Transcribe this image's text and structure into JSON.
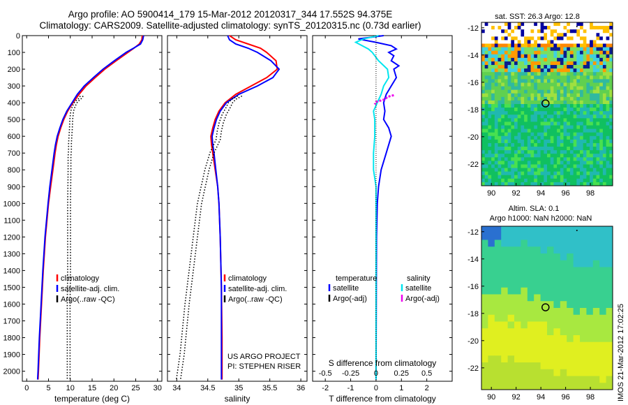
{
  "header": {
    "title_line1": "Argo profile: AO 5900414_179 15-Mar-2012 20120317_344 17.552S 94.375E",
    "title_line2": "Climatology: CARS2009. Satellite-adjusted climatology: synTS_20120315.nc (0.73d earlier)"
  },
  "stamp": "IMOS 21-Mar-2012 17:02:25",
  "chart_data": [
    {
      "type": "line",
      "panel": "temperature",
      "xlabel": "temperature (deg C)",
      "ylabel": "",
      "xlim": [
        -1,
        31
      ],
      "ylim": [
        2060,
        0
      ],
      "xticks": [
        0,
        5,
        10,
        15,
        20,
        25,
        30
      ],
      "yticks": [
        0,
        100,
        200,
        300,
        400,
        500,
        600,
        700,
        800,
        900,
        1000,
        1100,
        1200,
        1300,
        1400,
        1500,
        1600,
        1700,
        1800,
        1900,
        2000
      ],
      "legend": [
        "climatology",
        "satellite-adj. clim.",
        "Argo(..raw -QC)"
      ],
      "legend_placement": "lower-right",
      "series": [
        {
          "name": "climatology",
          "color": "#ff0000",
          "depth": [
            0,
            25,
            50,
            75,
            100,
            150,
            200,
            250,
            300,
            350,
            400,
            450,
            500,
            550,
            600,
            650,
            700,
            800,
            900,
            1000,
            1200,
            1400,
            1600,
            1800,
            2000,
            2050
          ],
          "values": [
            26.5,
            26.4,
            25.8,
            24.6,
            23.2,
            20.5,
            17.9,
            15.7,
            13.6,
            12.0,
            10.6,
            9.4,
            8.5,
            7.8,
            7.2,
            6.8,
            6.5,
            6.0,
            5.5,
            5.0,
            4.3,
            3.8,
            3.4,
            3.0,
            2.7,
            2.6
          ]
        },
        {
          "name": "satellite-adj. clim.",
          "color": "#0000ff",
          "depth": [
            0,
            25,
            50,
            75,
            100,
            150,
            200,
            250,
            300,
            350,
            400,
            450,
            500,
            550,
            600,
            650,
            700,
            800,
            900,
            1000,
            1200,
            1400,
            1600,
            1800,
            2000,
            2050
          ],
          "values": [
            26.8,
            26.6,
            26.1,
            24.5,
            22.8,
            20.1,
            17.5,
            15.3,
            13.2,
            11.6,
            10.4,
            9.2,
            8.3,
            7.6,
            7.0,
            6.6,
            6.3,
            5.8,
            5.3,
            4.9,
            4.2,
            3.7,
            3.3,
            2.9,
            2.6,
            2.5
          ]
        },
        {
          "name": "Argo(..raw -QC)",
          "color": "#000000",
          "depth": [
            360,
            375,
            390,
            400,
            420,
            450,
            500,
            560,
            600,
            640,
            680,
            720,
            760,
            800,
            1000,
            1200,
            1400,
            1600,
            1800,
            1950,
            2050
          ],
          "values": [
            12.3,
            11.9,
            11.2,
            10.9,
            10.5,
            10.1,
            9.9,
            9.8,
            9.7,
            9.6,
            9.6,
            9.5,
            9.5,
            9.5,
            9.4,
            9.4,
            9.4,
            9.3,
            9.3,
            9.3,
            9.3
          ]
        }
      ]
    },
    {
      "type": "line",
      "panel": "salinity",
      "xlabel": "salinity",
      "ylabel": "",
      "xlim": [
        33.85,
        36.1
      ],
      "ylim": [
        2060,
        0
      ],
      "xticks": [
        34,
        34.5,
        35,
        35.5,
        36
      ],
      "legend": [
        "climatology",
        "satellite-adj. clim.",
        "Argo(..raw -QC)"
      ],
      "legend_placement": "lower-right",
      "annotations": [
        "US ARGO PROJECT",
        "PI: STEPHEN RISER"
      ],
      "series": [
        {
          "name": "climatology",
          "color": "#ff0000",
          "depth": [
            0,
            25,
            50,
            75,
            100,
            150,
            200,
            250,
            300,
            350,
            400,
            450,
            500,
            550,
            600,
            650,
            700,
            800,
            900,
            1000,
            1200,
            1500,
            1800,
            2050
          ],
          "values": [
            34.85,
            34.95,
            35.15,
            35.35,
            35.45,
            35.6,
            35.62,
            35.45,
            35.2,
            34.95,
            34.78,
            34.68,
            34.62,
            34.58,
            34.55,
            34.56,
            34.58,
            34.62,
            34.66,
            34.68,
            34.7,
            34.72,
            34.73,
            34.73
          ]
        },
        {
          "name": "satellite-adj. clim.",
          "color": "#0000ff",
          "depth": [
            0,
            25,
            50,
            75,
            100,
            150,
            200,
            250,
            300,
            350,
            400,
            450,
            500,
            550,
            600,
            650,
            700,
            800,
            900,
            1000,
            1200,
            1500,
            1800,
            2050
          ],
          "values": [
            34.82,
            34.85,
            34.95,
            35.15,
            35.3,
            35.52,
            35.65,
            35.55,
            35.3,
            35.0,
            34.8,
            34.7,
            34.64,
            34.6,
            34.57,
            34.58,
            34.6,
            34.63,
            34.66,
            34.68,
            34.7,
            34.72,
            34.72,
            34.72
          ]
        },
        {
          "name": "Argo(..raw -QC)",
          "color": "#000000",
          "depth": [
            360,
            380,
            400,
            430,
            470,
            520,
            570,
            620,
            700,
            800,
            1000,
            1300,
            1600,
            1900,
            2050
          ],
          "values": [
            35.05,
            34.95,
            34.9,
            34.86,
            34.8,
            34.75,
            34.72,
            34.7,
            34.6,
            34.52,
            34.4,
            34.3,
            34.2,
            34.12,
            34.06
          ]
        }
      ]
    },
    {
      "type": "line",
      "panel": "difference",
      "xlabel": "T difference from climatology",
      "xlabel_top": "S difference from climatology",
      "ylabel": "",
      "xlim": [
        -2.5,
        3
      ],
      "ylim": [
        2060,
        0
      ],
      "xticks": [
        -2,
        -1,
        0,
        1,
        2
      ],
      "xticks_top": [
        -0.5,
        -0.25,
        0,
        0.25,
        0.5
      ],
      "legend": [
        "temperature",
        "satellite",
        "Argo(-adj)",
        "salinity",
        "satellite",
        "Argo(-adj)"
      ],
      "legend_placement": "lower-center",
      "series": [
        {
          "name": "temperature satellite",
          "color": "#0000ff",
          "depth": [
            0,
            20,
            40,
            60,
            80,
            100,
            120,
            150,
            180,
            200,
            250,
            300,
            350,
            400,
            450,
            500,
            550,
            600,
            650,
            700,
            800,
            900,
            1000,
            1200,
            1500,
            2050
          ],
          "values": [
            0.3,
            -0.7,
            0.0,
            0.6,
            0.8,
            0.5,
            0.7,
            0.6,
            0.9,
            0.7,
            0.8,
            0.6,
            0.4,
            0.3,
            0.35,
            0.3,
            0.5,
            0.6,
            0.5,
            0.4,
            0.2,
            0.1,
            0.05,
            0.02,
            0.01,
            0.0
          ]
        },
        {
          "name": "salinity satellite",
          "color": "#00e5ee",
          "depth": [
            0,
            20,
            40,
            60,
            80,
            100,
            150,
            200,
            250,
            300,
            350,
            400,
            450,
            500,
            600,
            700,
            800,
            900,
            1000,
            1500,
            2050
          ],
          "values": [
            0.1,
            -0.5,
            -0.8,
            -0.55,
            -0.3,
            -0.15,
            0.1,
            0.45,
            0.5,
            0.3,
            0.2,
            0.05,
            -0.1,
            -0.05,
            -0.05,
            -0.1,
            -0.1,
            0.0,
            0.0,
            0.0,
            0.0
          ]
        },
        {
          "name": "salinity Argo(-adj)",
          "color": "#ee00ee",
          "depth": [
            355,
            365,
            380,
            395,
            410
          ],
          "values": [
            0.7,
            0.45,
            0.35,
            0.0,
            -0.05
          ]
        }
      ]
    },
    {
      "type": "heatmap",
      "panel": "sst-map",
      "title": "sat. SST: 26.3 Argo: 12.8",
      "xticks": [
        90,
        92,
        94,
        96,
        98
      ],
      "yticks": [
        -12,
        -14,
        -16,
        -18,
        -20,
        -22
      ],
      "xlim": [
        89.2,
        99.8
      ],
      "ylim": [
        -23.6,
        -11.6
      ],
      "marker": {
        "lon": 94.375,
        "lat": -17.552
      }
    },
    {
      "type": "heatmap",
      "panel": "sla-map",
      "title": "Altim. SLA: 0.1",
      "subtitle": "Argo h1000: NaN h2000: NaN",
      "xticks": [
        90,
        92,
        94,
        96,
        98
      ],
      "yticks": [
        -12,
        -14,
        -16,
        -18,
        -20,
        -22
      ],
      "xlim": [
        89.2,
        99.8
      ],
      "ylim": [
        -23.6,
        -11.6
      ],
      "marker": {
        "lon": 94.375,
        "lat": -17.552
      }
    }
  ]
}
